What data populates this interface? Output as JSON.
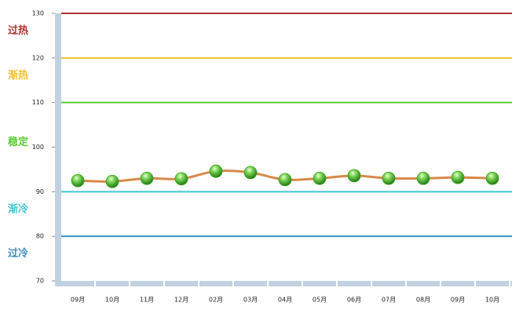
{
  "chart_data": {
    "type": "line",
    "categories": [
      "09月",
      "10月",
      "11月",
      "12月",
      "02月",
      "03月",
      "04月",
      "05月",
      "06月",
      "07月",
      "08月",
      "09月",
      "10月"
    ],
    "series": [
      {
        "color": "#d9894a",
        "marker_color": "#3aa51f",
        "values": [
          92.5,
          92.3,
          93.0,
          92.9,
          94.6,
          94.3,
          92.7,
          93.0,
          93.6,
          93.0,
          93.0,
          93.2,
          93.0
        ]
      }
    ],
    "ylim": [
      70,
      130
    ],
    "yticks": [
      70,
      80,
      90,
      100,
      110,
      120,
      130
    ],
    "reference_lines": [
      {
        "value": 130,
        "color": "#b0302e"
      },
      {
        "value": 120,
        "color": "#f2c02e"
      },
      {
        "value": 110,
        "color": "#5ccc2e"
      },
      {
        "value": 90,
        "color": "#3fc6cf"
      },
      {
        "value": 80,
        "color": "#3c8fc0"
      }
    ],
    "zones": [
      {
        "label": "过热",
        "color": "#b0302e"
      },
      {
        "label": "渐热",
        "color": "#f2c02e"
      },
      {
        "label": "稳定",
        "color": "#5ccc2e"
      },
      {
        "label": "渐冷",
        "color": "#3fc6cf"
      },
      {
        "label": "过冷",
        "color": "#3c8fc0"
      }
    ]
  }
}
